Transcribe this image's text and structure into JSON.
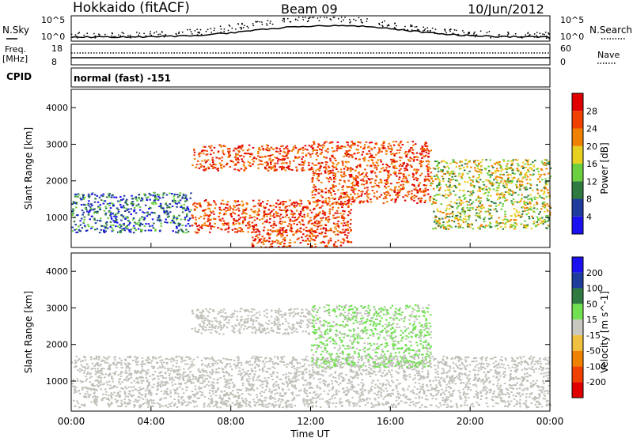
{
  "header": {
    "title": "Hokkaido (fitACF)",
    "beam": "Beam 09",
    "date": "10/Jun/2012"
  },
  "noise_panel": {
    "left_label": "N.Sky",
    "right_label": "N.Search",
    "y_ticks": [
      "10^5",
      "10^0"
    ]
  },
  "freq_panel": {
    "left_label_1": "Freq.",
    "left_label_2": "[MHz]",
    "right_label": "Nave",
    "left_ticks": [
      "18",
      "8"
    ],
    "right_ticks": [
      "60",
      "0"
    ]
  },
  "cpid": {
    "label": "CPID",
    "value": "normal (fast) -151"
  },
  "colors": {
    "power_scale": [
      "#1a10f0",
      "#1e3c9c",
      "#2e7a40",
      "#6ad040",
      "#e8d020",
      "#f08000",
      "#f04000",
      "#e00000"
    ],
    "velocity_scale": [
      "#e00000",
      "#f04000",
      "#f08000",
      "#f0c040",
      "#c8c8c0",
      "#70e050",
      "#2e7a40",
      "#1e3c9c",
      "#1a10f0"
    ],
    "ground_scatter": "#c0c0b8"
  },
  "chart_data": [
    {
      "type": "heatmap",
      "panel": "power",
      "ylabel": "Slant Range [km]",
      "xlabel": "",
      "ylim": [
        180,
        4500
      ],
      "xlim": [
        "00:00",
        "24:00"
      ],
      "y_ticks": [
        1000,
        2000,
        3000,
        4000
      ],
      "x_ticks": [
        "00:00",
        "04:00",
        "08:00",
        "12:00",
        "16:00",
        "20:00",
        "00:00"
      ],
      "colorbar": {
        "label": "Power [dB]",
        "tick_labels": [
          "4",
          "8",
          "12",
          "16",
          "20",
          "24",
          "28"
        ]
      },
      "regions": [
        {
          "t": [
            0,
            6
          ],
          "r": [
            600,
            1700
          ],
          "level": "low"
        },
        {
          "t": [
            6,
            14
          ],
          "r": [
            600,
            1500
          ],
          "level": "high"
        },
        {
          "t": [
            6,
            12
          ],
          "r": [
            2300,
            3000
          ],
          "level": "high"
        },
        {
          "t": [
            12,
            18
          ],
          "r": [
            1400,
            3100
          ],
          "level": "high"
        },
        {
          "t": [
            18,
            24
          ],
          "r": [
            700,
            2600
          ],
          "level": "mid"
        },
        {
          "t": [
            9,
            14
          ],
          "r": [
            200,
            700
          ],
          "level": "high"
        }
      ]
    },
    {
      "type": "heatmap",
      "panel": "velocity",
      "ylabel": "Slant Range [km]",
      "xlabel": "Time UT",
      "ylim": [
        180,
        4500
      ],
      "xlim": [
        "00:00",
        "24:00"
      ],
      "y_ticks": [
        1000,
        2000,
        3000,
        4000
      ],
      "x_ticks": [
        "00:00",
        "04:00",
        "08:00",
        "12:00",
        "16:00",
        "20:00",
        "00:00"
      ],
      "colorbar": {
        "label": "Velocity [m s^-1]",
        "tick_labels": [
          "200",
          "100",
          "50",
          "15",
          "-15",
          "-50",
          "-100",
          "-200"
        ]
      },
      "regions": [
        {
          "t": [
            0,
            24
          ],
          "r": [
            300,
            1700
          ],
          "level": "ground"
        },
        {
          "t": [
            12,
            18
          ],
          "r": [
            1400,
            3100
          ],
          "level": "positive"
        },
        {
          "t": [
            6,
            12
          ],
          "r": [
            2300,
            3000
          ],
          "level": "ground"
        }
      ]
    }
  ]
}
